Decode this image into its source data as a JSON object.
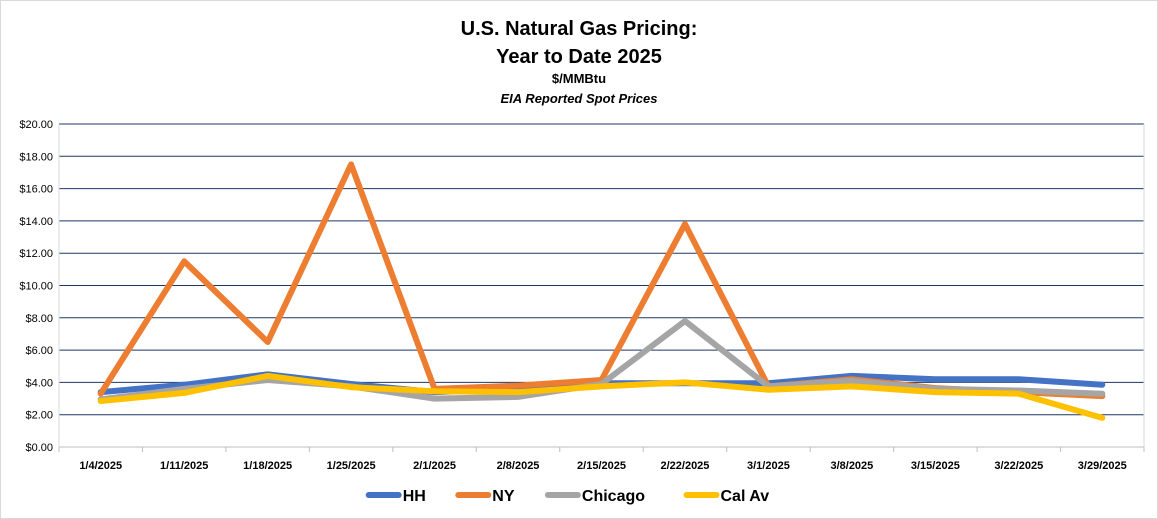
{
  "chart_data": {
    "type": "line",
    "title": "U.S. Natural Gas Pricing:",
    "title_line2": "Year to Date 2025",
    "subtitle": "$/MMBtu",
    "subtitle2": "EIA Reported Spot Prices",
    "xlabel": "",
    "ylabel": "",
    "ylim": [
      0,
      20
    ],
    "y_ticks": [
      0,
      2,
      4,
      6,
      8,
      10,
      12,
      14,
      16,
      18,
      20
    ],
    "y_tick_labels": [
      "$0.00",
      "$2.00",
      "$4.00",
      "$6.00",
      "$8.00",
      "$10.00",
      "$12.00",
      "$14.00",
      "$16.00",
      "$18.00",
      "$20.00"
    ],
    "categories": [
      "1/4/2025",
      "1/11/2025",
      "1/18/2025",
      "1/25/2025",
      "2/1/2025",
      "2/8/2025",
      "2/15/2025",
      "2/22/2025",
      "3/1/2025",
      "3/8/2025",
      "3/15/2025",
      "3/22/2025",
      "3/29/2025"
    ],
    "grid": true,
    "legend_position": "bottom",
    "series": [
      {
        "name": "HH",
        "color": "#4472C4",
        "values": [
          3.4,
          3.85,
          4.5,
          3.9,
          3.4,
          3.6,
          3.95,
          3.95,
          3.95,
          4.4,
          4.2,
          4.2,
          3.85
        ]
      },
      {
        "name": "NY",
        "color": "#ED7D31",
        "values": [
          3.3,
          11.5,
          6.5,
          17.5,
          3.6,
          3.8,
          4.15,
          13.8,
          3.75,
          4.2,
          3.65,
          3.4,
          3.15
        ]
      },
      {
        "name": "Chicago",
        "color": "#A5A5A5",
        "values": [
          2.95,
          3.6,
          4.15,
          3.75,
          3.0,
          3.1,
          3.9,
          7.8,
          3.75,
          4.1,
          3.6,
          3.5,
          3.3
        ]
      },
      {
        "name": "Cal Av",
        "color": "#FFC000",
        "values": [
          2.85,
          3.35,
          4.4,
          3.7,
          3.45,
          3.4,
          3.75,
          4.0,
          3.55,
          3.75,
          3.4,
          3.3,
          1.8
        ]
      }
    ]
  }
}
